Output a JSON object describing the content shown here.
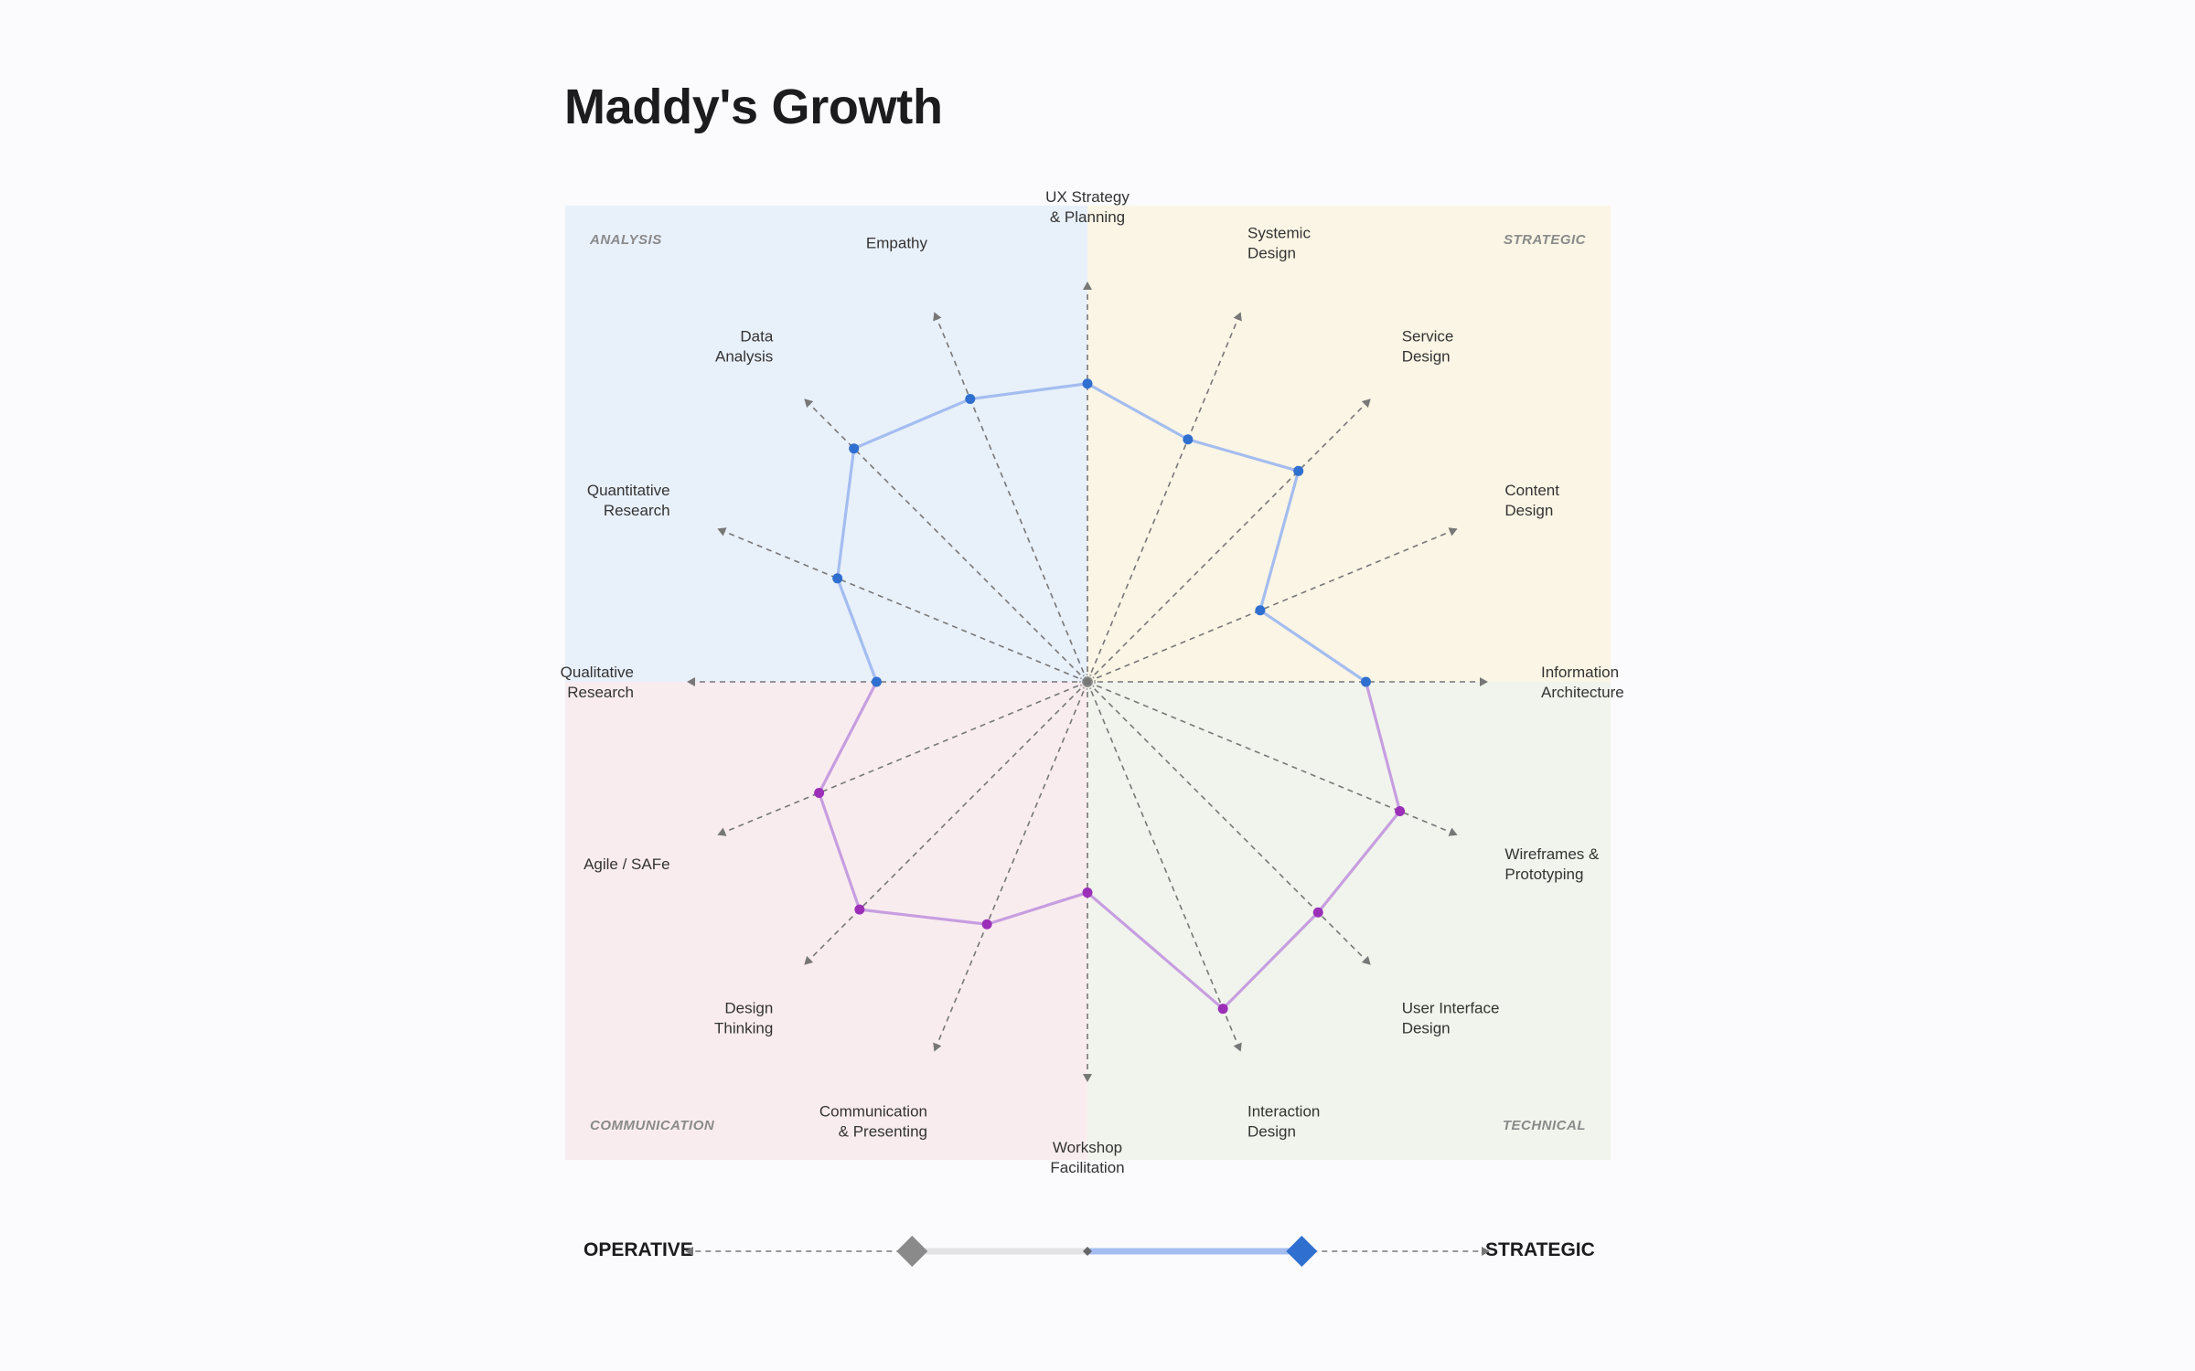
{
  "title": "Maddy's Growth",
  "quadrants": {
    "top_left": "ANALYSIS",
    "top_right": "STRATEGIC",
    "bottom_left": "COMMUNICATION",
    "bottom_right": "TECHNICAL"
  },
  "colors": {
    "analysis_bg": "#e8f0fa",
    "strategic_bg": "#fbf5e5",
    "communication_bg": "#f9ecef",
    "technical_bg": "#f0f4ec",
    "upper_line": "#a4bdf0",
    "upper_point": "#2f6fcf",
    "lower_line": "#c79ee0",
    "lower_point": "#9b2fb8",
    "axis": "#777777",
    "slider_fill": "#a4bdf0",
    "slider_handle": "#2f6fcf",
    "slider_track": "#e3e3e6",
    "slider_marker": "#8a8a8a"
  },
  "chart_data": {
    "type": "radar",
    "scale_max": 1,
    "axes": [
      {
        "label": [
          "UX Strategy",
          "& Planning"
        ],
        "value": 0.75
      },
      {
        "label": [
          "Systemic",
          "Design"
        ],
        "value": 0.66
      },
      {
        "label": [
          "Service",
          "Design"
        ],
        "value": 0.75
      },
      {
        "label": [
          "Content",
          "Design"
        ],
        "value": 0.47
      },
      {
        "label": [
          "Information",
          "Architecture"
        ],
        "value": 0.7
      },
      {
        "label": [
          "Wireframes &",
          "Prototyping"
        ],
        "value": 0.85
      },
      {
        "label": [
          "User Interface",
          "Design"
        ],
        "value": 0.82
      },
      {
        "label": [
          "Interaction",
          "Design"
        ],
        "value": 0.89
      },
      {
        "label": [
          "Workshop",
          "Facilitation"
        ],
        "value": 0.53
      },
      {
        "label": [
          "Communication",
          "& Presenting"
        ],
        "value": 0.66
      },
      {
        "label": [
          "Design",
          "Thinking"
        ],
        "value": 0.81
      },
      {
        "label": [
          "Agile / SAFe"
        ],
        "value": 0.73
      },
      {
        "label": [
          "Qualitative",
          "Research"
        ],
        "value": 0.53
      },
      {
        "label": [
          "Quantitative",
          "Research"
        ],
        "value": 0.68
      },
      {
        "label": [
          "Data",
          "Analysis"
        ],
        "value": 0.83
      },
      {
        "label": [
          "Empathy"
        ],
        "value": 0.77
      }
    ]
  },
  "slider": {
    "left_label": "OPERATIVE",
    "right_label": "STRATEGIC",
    "operative_level": 0.54,
    "strategic_level": 0.66
  }
}
